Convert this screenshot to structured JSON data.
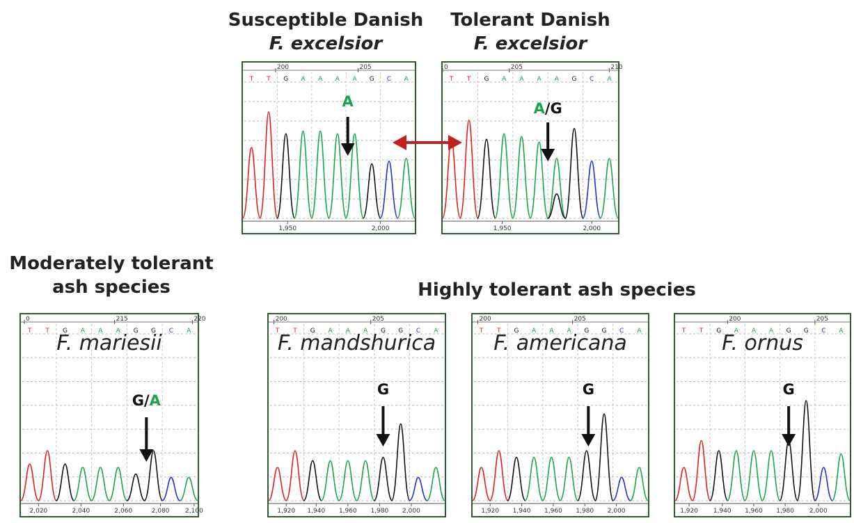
{
  "titles": {
    "susceptible_1": "Susceptible Danish",
    "susceptible_2": "F. excelsior",
    "tolerant_1": "Tolerant Danish",
    "tolerant_2": "F. excelsior",
    "moderate_1": "Moderately tolerant",
    "moderate_2": "ash species",
    "highly": "Highly tolerant ash species"
  },
  "colors": {
    "A": "#19a64a",
    "G": "#111111",
    "T": "#e02020",
    "C": "#2030e0",
    "frame": "#2f5a32",
    "double_arrow": "#c0201e"
  },
  "panels": [
    {
      "id": "susceptible",
      "species": "",
      "top_ticks": [
        {
          "pos": 0.19,
          "label": "200"
        },
        {
          "pos": 0.67,
          "label": "205"
        }
      ],
      "bases": [
        "T",
        "T",
        "G",
        "A",
        "A",
        "A",
        "A",
        "G",
        "C",
        "A"
      ],
      "bottom_ticks": [
        {
          "pos": 0.26,
          "label": "1,950"
        },
        {
          "pos": 0.8,
          "label": "2,000"
        }
      ],
      "call": [
        {
          "t": "A",
          "c": "g"
        }
      ],
      "peaks": [
        {
          "b": "T",
          "h": 0.52
        },
        {
          "b": "T",
          "h": 0.78
        },
        {
          "b": "G",
          "h": 0.62
        },
        {
          "b": "A",
          "h": 0.64
        },
        {
          "b": "A",
          "h": 0.64
        },
        {
          "b": "A",
          "h": 0.62
        },
        {
          "b": "A",
          "h": 0.62
        },
        {
          "b": "G",
          "h": 0.4
        },
        {
          "b": "C",
          "h": 0.42
        },
        {
          "b": "A",
          "h": 0.44
        }
      ],
      "arrow_pos": 0.61
    },
    {
      "id": "tolerant",
      "species": "",
      "top_ticks": [
        {
          "pos": 0.0,
          "label": "0"
        },
        {
          "pos": 0.38,
          "label": "205"
        },
        {
          "pos": 0.95,
          "label": "210"
        }
      ],
      "bases": [
        "T",
        "T",
        "G",
        "A",
        "A",
        "A",
        "A",
        "G",
        "C",
        "A"
      ],
      "bottom_ticks": [
        {
          "pos": 0.34,
          "label": "1,950"
        },
        {
          "pos": 0.85,
          "label": "2,000"
        }
      ],
      "call": [
        {
          "t": "A",
          "c": "g"
        },
        {
          "t": "/G",
          "c": "k"
        }
      ],
      "peaks": [
        {
          "b": "T",
          "h": 0.58
        },
        {
          "b": "T",
          "h": 0.72
        },
        {
          "b": "G",
          "h": 0.58
        },
        {
          "b": "A",
          "h": 0.62
        },
        {
          "b": "A",
          "h": 0.6
        },
        {
          "b": "A",
          "h": 0.56
        },
        {
          "b": "A",
          "h": 0.44
        },
        {
          "b": "G",
          "h": 0.66
        },
        {
          "b": "C",
          "h": 0.42
        },
        {
          "b": "A",
          "h": 0.44
        }
      ],
      "secondary": [
        {
          "b": "G",
          "idx": 6,
          "h": 0.18
        }
      ],
      "arrow_pos": 0.6
    },
    {
      "id": "mariesii",
      "species": "F. mariesii",
      "top_ticks": [
        {
          "pos": 0.02,
          "label": "0"
        },
        {
          "pos": 0.53,
          "label": "215"
        },
        {
          "pos": 0.97,
          "label": "220"
        }
      ],
      "bases": [
        "T",
        "T",
        "G",
        "A",
        "A",
        "A",
        "G",
        "G",
        "C",
        "A"
      ],
      "bottom_ticks": [
        {
          "pos": 0.1,
          "label": "2,020"
        },
        {
          "pos": 0.34,
          "label": "2,040"
        },
        {
          "pos": 0.58,
          "label": "2,060"
        },
        {
          "pos": 0.79,
          "label": "2,080"
        },
        {
          "pos": 0.98,
          "label": "2,100"
        }
      ],
      "call": [
        {
          "t": "G",
          "c": "k"
        },
        {
          "t": "/",
          "c": "k"
        },
        {
          "t": "A",
          "c": "g"
        }
      ],
      "peaks": [
        {
          "b": "T",
          "h": 0.22
        },
        {
          "b": "T",
          "h": 0.3
        },
        {
          "b": "G",
          "h": 0.22
        },
        {
          "b": "A",
          "h": 0.2
        },
        {
          "b": "A",
          "h": 0.2
        },
        {
          "b": "A",
          "h": 0.2
        },
        {
          "b": "G",
          "h": 0.16
        },
        {
          "b": "G",
          "h": 0.3
        },
        {
          "b": "C",
          "h": 0.14
        },
        {
          "b": "A",
          "h": 0.14
        }
      ],
      "arrow_pos": 0.71
    },
    {
      "id": "mandshurica",
      "species": "F. mandshurica",
      "top_ticks": [
        {
          "pos": 0.03,
          "label": "200"
        },
        {
          "pos": 0.58,
          "label": "205"
        }
      ],
      "bases": [
        "T",
        "T",
        "G",
        "A",
        "A",
        "A",
        "G",
        "G",
        "C",
        "A"
      ],
      "bottom_ticks": [
        {
          "pos": 0.1,
          "label": "1,920"
        },
        {
          "pos": 0.27,
          "label": "1,940"
        },
        {
          "pos": 0.45,
          "label": "1,960"
        },
        {
          "pos": 0.63,
          "label": "1,980"
        },
        {
          "pos": 0.81,
          "label": "2,000"
        }
      ],
      "call": [
        {
          "t": "G",
          "c": "k"
        }
      ],
      "peaks": [
        {
          "b": "T",
          "h": 0.2
        },
        {
          "b": "T",
          "h": 0.3
        },
        {
          "b": "G",
          "h": 0.24
        },
        {
          "b": "A",
          "h": 0.24
        },
        {
          "b": "A",
          "h": 0.24
        },
        {
          "b": "A",
          "h": 0.24
        },
        {
          "b": "G",
          "h": 0.26
        },
        {
          "b": "G",
          "h": 0.46
        },
        {
          "b": "C",
          "h": 0.14
        },
        {
          "b": "A",
          "h": 0.2
        }
      ],
      "arrow_pos": 0.65
    },
    {
      "id": "americana",
      "species": "F. americana",
      "top_ticks": [
        {
          "pos": 0.03,
          "label": "200"
        },
        {
          "pos": 0.57,
          "label": "205"
        }
      ],
      "bases": [
        "T",
        "T",
        "G",
        "A",
        "A",
        "A",
        "G",
        "G",
        "C",
        "A"
      ],
      "bottom_ticks": [
        {
          "pos": 0.1,
          "label": "1,920"
        },
        {
          "pos": 0.28,
          "label": "1,940"
        },
        {
          "pos": 0.46,
          "label": "1,960"
        },
        {
          "pos": 0.64,
          "label": "1,980"
        },
        {
          "pos": 0.82,
          "label": "2,000"
        }
      ],
      "call": [
        {
          "t": "G",
          "c": "k"
        }
      ],
      "peaks": [
        {
          "b": "T",
          "h": 0.2
        },
        {
          "b": "T",
          "h": 0.3
        },
        {
          "b": "G",
          "h": 0.26
        },
        {
          "b": "A",
          "h": 0.26
        },
        {
          "b": "A",
          "h": 0.26
        },
        {
          "b": "A",
          "h": 0.26
        },
        {
          "b": "G",
          "h": 0.3
        },
        {
          "b": "G",
          "h": 0.52
        },
        {
          "b": "C",
          "h": 0.14
        },
        {
          "b": "A",
          "h": 0.2
        }
      ],
      "arrow_pos": 0.66
    },
    {
      "id": "ornus",
      "species": "F. ornus",
      "top_ticks": [
        {
          "pos": 0.3,
          "label": "200"
        },
        {
          "pos": 0.8,
          "label": "205"
        }
      ],
      "bases": [
        "T",
        "T",
        "G",
        "A",
        "A",
        "A",
        "G",
        "G",
        "C",
        "A"
      ],
      "bottom_ticks": [
        {
          "pos": 0.08,
          "label": "1,920"
        },
        {
          "pos": 0.27,
          "label": "1,940"
        },
        {
          "pos": 0.45,
          "label": "1,960"
        },
        {
          "pos": 0.63,
          "label": "1,980"
        },
        {
          "pos": 0.82,
          "label": "2,000"
        }
      ],
      "call": [
        {
          "t": "G",
          "c": "k"
        }
      ],
      "peaks": [
        {
          "b": "T",
          "h": 0.2
        },
        {
          "b": "T",
          "h": 0.36
        },
        {
          "b": "G",
          "h": 0.3
        },
        {
          "b": "A",
          "h": 0.3
        },
        {
          "b": "A",
          "h": 0.3
        },
        {
          "b": "A",
          "h": 0.3
        },
        {
          "b": "G",
          "h": 0.36
        },
        {
          "b": "G",
          "h": 0.6
        },
        {
          "b": "C",
          "h": 0.2
        },
        {
          "b": "A",
          "h": 0.28
        }
      ],
      "arrow_pos": 0.65
    }
  ]
}
